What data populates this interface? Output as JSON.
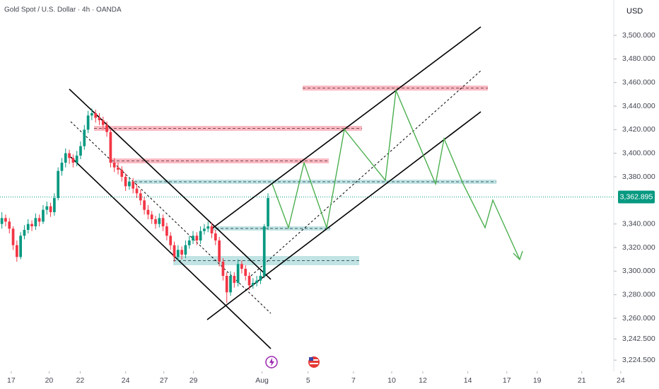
{
  "chart_data": {
    "type": "candlestick",
    "title": "Gold Spot / U.S. Dollar · 4h · OANDA",
    "currency": "USD",
    "up_color": "#089981",
    "down_color": "#f23645",
    "x": [
      0,
      1,
      2,
      3,
      4,
      5,
      6,
      7,
      8,
      9,
      10,
      11,
      12,
      13,
      14,
      15,
      16,
      17,
      18,
      19,
      20,
      21,
      22,
      23,
      24,
      25,
      26,
      27,
      28,
      29,
      30,
      31,
      32,
      33,
      34,
      35,
      36,
      37,
      38,
      39,
      40,
      41,
      42,
      43,
      44,
      45,
      46,
      47,
      48,
      49,
      50,
      51,
      52,
      53,
      54,
      55,
      56,
      57,
      58,
      59,
      60,
      61,
      62,
      63,
      64,
      65,
      66,
      67,
      68,
      69,
      70,
      71
    ],
    "open": [
      3340,
      3345,
      3342,
      3336,
      3322,
      3312,
      3330,
      3335,
      3340,
      3338,
      3345,
      3342,
      3352,
      3355,
      3350,
      3362,
      3385,
      3392,
      3400,
      3396,
      3392,
      3398,
      3406,
      3420,
      3432,
      3434,
      3430,
      3428,
      3424,
      3418,
      3392,
      3388,
      3386,
      3380,
      3372,
      3376,
      3370,
      3366,
      3360,
      3352,
      3348,
      3344,
      3340,
      3345,
      3338,
      3330,
      3322,
      3312,
      3318,
      3314,
      3322,
      3326,
      3330,
      3326,
      3334,
      3336,
      3338,
      3332,
      3326,
      3308,
      3296,
      3282,
      3296,
      3290,
      3306,
      3302,
      3296,
      3288,
      3290,
      3292,
      3296,
      3338
    ],
    "high": [
      3350,
      3348,
      3345,
      3338,
      3326,
      3333,
      3339,
      3344,
      3343,
      3349,
      3348,
      3356,
      3359,
      3358,
      3366,
      3388,
      3396,
      3404,
      3403,
      3399,
      3402,
      3410,
      3424,
      3436,
      3438,
      3437,
      3434,
      3431,
      3427,
      3420,
      3396,
      3392,
      3389,
      3383,
      3380,
      3379,
      3374,
      3369,
      3363,
      3356,
      3351,
      3347,
      3349,
      3348,
      3341,
      3333,
      3325,
      3322,
      3321,
      3326,
      3330,
      3334,
      3333,
      3338,
      3340,
      3342,
      3341,
      3335,
      3329,
      3311,
      3299,
      3300,
      3299,
      3310,
      3309,
      3305,
      3299,
      3294,
      3296,
      3300,
      3340,
      3366
    ],
    "low": [
      3336,
      3338,
      3332,
      3318,
      3308,
      3310,
      3327,
      3332,
      3334,
      3335,
      3338,
      3340,
      3348,
      3346,
      3347,
      3360,
      3381,
      3388,
      3391,
      3388,
      3389,
      3395,
      3403,
      3417,
      3428,
      3426,
      3424,
      3420,
      3414,
      3388,
      3384,
      3382,
      3376,
      3368,
      3369,
      3366,
      3362,
      3356,
      3348,
      3344,
      3340,
      3336,
      3337,
      3334,
      3326,
      3318,
      3308,
      3309,
      3310,
      3311,
      3319,
      3323,
      3322,
      3323,
      3331,
      3333,
      3328,
      3322,
      3304,
      3292,
      3273,
      3279,
      3286,
      3287,
      3298,
      3292,
      3284,
      3285,
      3287,
      3289,
      3294,
      3335
    ],
    "close": [
      3345,
      3342,
      3336,
      3322,
      3312,
      3330,
      3335,
      3340,
      3338,
      3345,
      3342,
      3352,
      3355,
      3350,
      3362,
      3385,
      3392,
      3400,
      3396,
      3392,
      3398,
      3406,
      3420,
      3432,
      3434,
      3430,
      3428,
      3424,
      3418,
      3392,
      3388,
      3386,
      3380,
      3372,
      3376,
      3370,
      3366,
      3360,
      3352,
      3348,
      3344,
      3340,
      3345,
      3338,
      3330,
      3322,
      3312,
      3318,
      3314,
      3322,
      3326,
      3330,
      3326,
      3334,
      3336,
      3338,
      3332,
      3326,
      3308,
      3296,
      3282,
      3296,
      3290,
      3306,
      3302,
      3296,
      3288,
      3290,
      3292,
      3296,
      3338,
      3362
    ],
    "last_price": {
      "value": 3362.895,
      "label": "3,362.895"
    },
    "xlim": [
      0,
      166
    ],
    "xticks": [
      {
        "value": 2.5,
        "label": "17"
      },
      {
        "value": 12.6,
        "label": "20"
      },
      {
        "value": 20.9,
        "label": "22"
      },
      {
        "value": 33,
        "label": "24"
      },
      {
        "value": 43.2,
        "label": "27"
      },
      {
        "value": 51.1,
        "label": "29"
      },
      {
        "value": 69.4,
        "label": "Aug"
      },
      {
        "value": 81.7,
        "label": "5"
      },
      {
        "value": 93.8,
        "label": "7"
      },
      {
        "value": 104,
        "label": "10"
      },
      {
        "value": 112.3,
        "label": "12"
      },
      {
        "value": 124.3,
        "label": "14"
      },
      {
        "value": 134.7,
        "label": "17"
      },
      {
        "value": 142.8,
        "label": "19"
      },
      {
        "value": 154.7,
        "label": "21"
      },
      {
        "value": 165.1,
        "label": "24"
      }
    ],
    "ylim": [
      3215,
      3530
    ],
    "yticks": [
      {
        "value": 3500,
        "label": "3,500.000"
      },
      {
        "value": 3480,
        "label": "3,480.000"
      },
      {
        "value": 3460,
        "label": "3,460.000"
      },
      {
        "value": 3440,
        "label": "3,440.000"
      },
      {
        "value": 3420,
        "label": "3,420.000"
      },
      {
        "value": 3400,
        "label": "3,400.000"
      },
      {
        "value": 3380,
        "label": "3,380.000"
      },
      {
        "value": 3340,
        "label": "3,340.000"
      },
      {
        "value": 3320,
        "label": "3,320.000"
      },
      {
        "value": 3300,
        "label": "3,300.000"
      },
      {
        "value": 3280,
        "label": "3,280.000"
      },
      {
        "value": 3260,
        "label": "3,260.000"
      },
      {
        "value": 3242.5,
        "label": "3,242.500"
      },
      {
        "value": 3224.5,
        "label": "3,224.500"
      }
    ]
  }
}
